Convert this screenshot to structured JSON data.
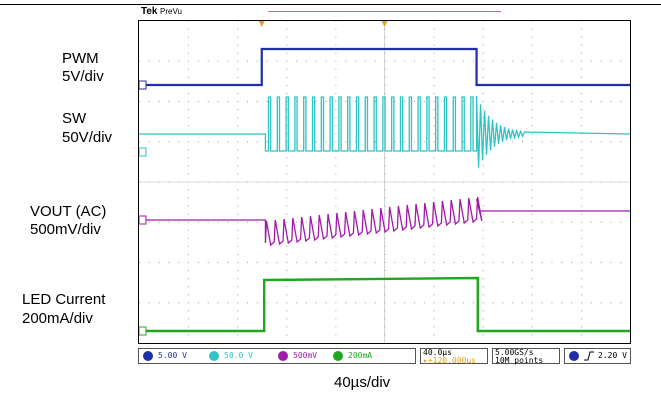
{
  "header": {
    "brand": "Tek",
    "mode": "PreVu"
  },
  "labels": {
    "pwm_name": "PWM",
    "pwm_scale": "5V/div",
    "sw_name": "SW",
    "sw_scale": "50V/div",
    "vout_name": "VOUT (AC)",
    "vout_scale": "500mV/div",
    "led_name": "LED Current",
    "led_scale": "200mA/div",
    "time_scale": "40µs/div"
  },
  "status_bar": {
    "ch1": "5.00 V",
    "ch2": "50.0 V",
    "ch3": "500mV",
    "ch4": "200mA",
    "timebase": "40.0µs",
    "trigger_pos": "▸+120.000µs",
    "sample_rate": "5.00GS/s",
    "record_length": "10M points",
    "trigger_level": "2.20 V"
  },
  "colors": {
    "ch1": "#1f2fa8",
    "ch2": "#2ec4c4",
    "ch3": "#a21aa8",
    "ch4": "#1fa81f",
    "grid": "#9a9a9a",
    "trigger": "#e8a020"
  },
  "chart_data": {
    "type": "line",
    "x_unit": "µs",
    "xlim": [
      -200,
      200
    ],
    "x_divisions": 10,
    "y_divisions": 8,
    "series": [
      {
        "name": "PWM",
        "channel": 1,
        "low": 0,
        "high": 5,
        "rise_us": -100,
        "fall_us": 75
      },
      {
        "name": "SW",
        "channel": 2,
        "idle": 0,
        "low": -12,
        "high": 50,
        "start_us": -97,
        "end_us": 75,
        "pulses": 24,
        "ring_after_end_us": 40
      },
      {
        "name": "VOUT (AC)",
        "channel": 3,
        "baseline": 0,
        "droop_at_start": -0.5,
        "end_level": 0.3,
        "start_us": -97,
        "end_us": 75
      },
      {
        "name": "LED Current",
        "channel": 4,
        "low": 0,
        "high": 0.2,
        "rise_us": -98,
        "fall_us": 76
      }
    ]
  }
}
